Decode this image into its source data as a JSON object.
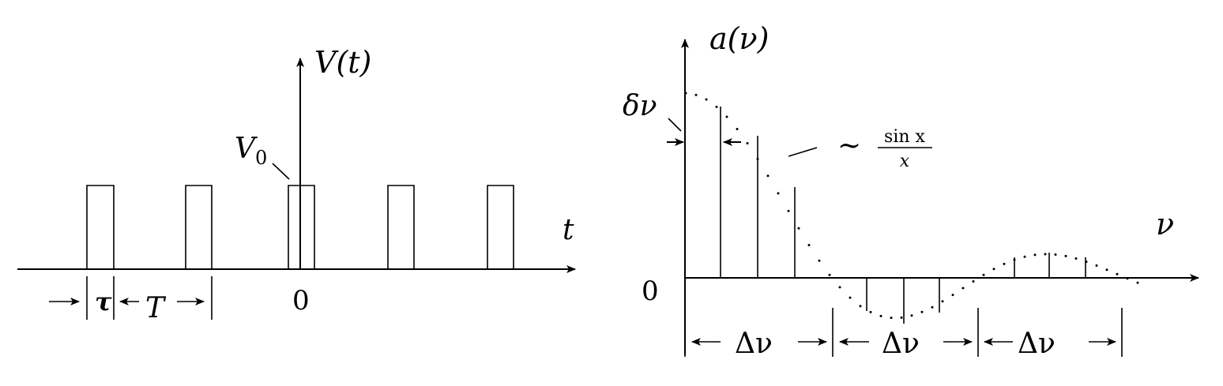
{
  "left_panel": {
    "y_axis_label": "V(t)",
    "x_axis_label": "t",
    "amplitude_label": "V",
    "amplitude_subscript": "0",
    "origin_label": "0",
    "pulse_width_label": "τ",
    "period_label": "T"
  },
  "right_panel": {
    "y_axis_label": "a(ν)",
    "x_axis_label": "ν",
    "origin_label": "0",
    "line_spacing_label": "δν",
    "envelope_tilde": "∼",
    "envelope_numerator": "sin x",
    "envelope_denominator": "x",
    "lobe_width_labels": [
      "Δν",
      "Δν",
      "Δν"
    ]
  }
}
